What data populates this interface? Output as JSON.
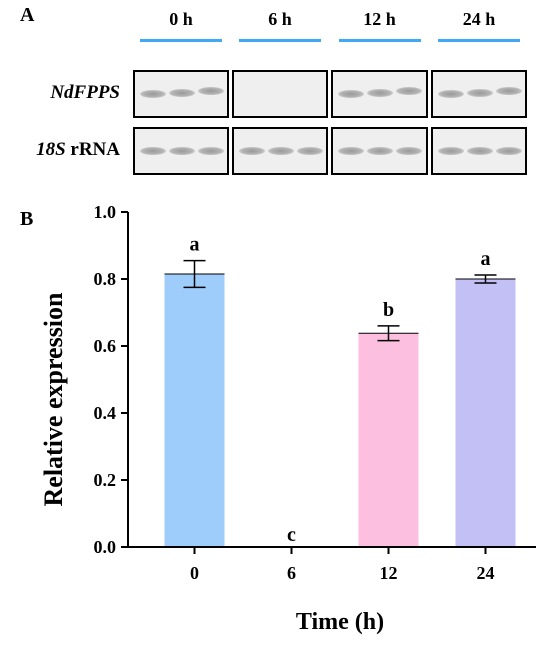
{
  "panel_a": {
    "letter": "A",
    "time_points": [
      "0 h",
      "6 h",
      "12 h",
      "24 h"
    ],
    "line_color": "#3fa9f5",
    "rows": [
      {
        "label_italic": "NdFPPS",
        "label_rest": "",
        "bands_visible": [
          true,
          false,
          true,
          true
        ]
      },
      {
        "label_italic": "18S",
        "label_rest": " rRNA",
        "bands_visible": [
          true,
          true,
          true,
          true
        ]
      }
    ]
  },
  "chart_data": {
    "type": "bar",
    "panel_letter": "B",
    "categories": [
      "0",
      "6",
      "12",
      "24"
    ],
    "values": [
      0.815,
      0.0,
      0.638,
      0.8
    ],
    "errors": [
      0.04,
      0.0,
      0.022,
      0.012
    ],
    "significance_letters": [
      "a",
      "c",
      "b",
      "a"
    ],
    "colors": [
      "#9fcdfb",
      "#9fcdfb",
      "#fcbfe0",
      "#c3c0f6"
    ],
    "xlabel": "Time (h)",
    "ylabel": "Relative expression",
    "ylim": [
      0.0,
      1.0
    ],
    "yticks": [
      "0.0",
      "0.2",
      "0.4",
      "0.6",
      "0.8",
      "1.0"
    ],
    "grid": false
  }
}
